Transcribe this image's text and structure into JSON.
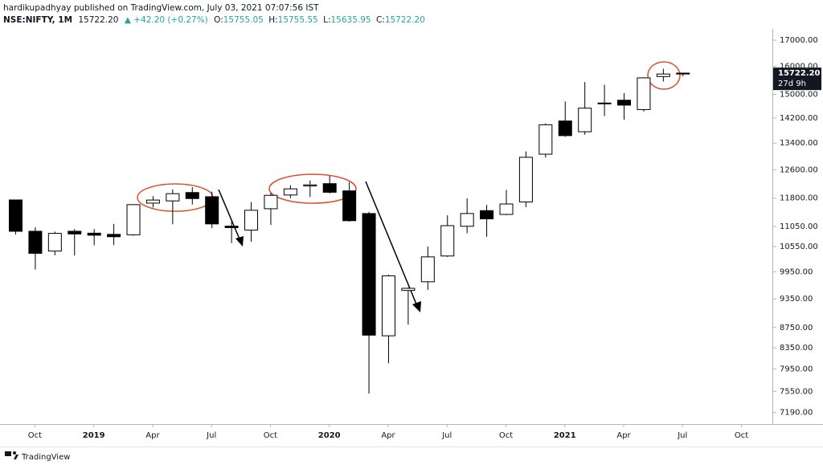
{
  "header": {
    "line1": "hardikupadhyay published on TradingView.com, July 03, 2021 07:07:56 IST",
    "symbol": "NSE:NIFTY, 1M",
    "last": "15722.20",
    "change": "▲ +42.20 (+0.27%)",
    "o_label": "O:",
    "o": "15755.05",
    "h_label": "H:",
    "h": "15755.55",
    "l_label": "L:",
    "l": "15635.95",
    "c_label": "C:",
    "c": "15722.20"
  },
  "chart_data": {
    "type": "candlestick",
    "log_scale": true,
    "grid": false,
    "up_color": "#ffffff",
    "down_color": "#000000",
    "edge_color": "#000000",
    "categories": [
      null,
      "Oct",
      null,
      null,
      "2019",
      null,
      null,
      "Apr",
      null,
      null,
      "Jul",
      null,
      null,
      "Oct",
      null,
      null,
      "2020",
      null,
      null,
      "Apr",
      null,
      null,
      "Jul",
      null,
      null,
      "Oct",
      null,
      null,
      "2021",
      null,
      null,
      "Apr",
      null,
      null,
      "Jul",
      null,
      null,
      "Oct"
    ],
    "open": [
      11751,
      10930,
      10441,
      10930,
      10882,
      10852,
      10842,
      11665,
      11725,
      11954,
      11839,
      11060,
      10960,
      11515,
      11886,
      12137,
      12202,
      12000,
      11387,
      8584,
      9533,
      9726,
      10323,
      11057,
      11464,
      11364,
      11697,
      13062,
      14104,
      13758,
      14702,
      14798,
      14481,
      15630,
      15755.05,
      null,
      null,
      null
    ],
    "high": [
      11751,
      11035,
      10922,
      10985,
      10987,
      11118,
      11631,
      11856,
      12041,
      12103,
      11981,
      11181,
      11694,
      11945,
      12158,
      12293,
      12430,
      12246,
      11433,
      9889,
      9598,
      10553,
      11341,
      11794,
      11618,
      12025,
      13146,
      14024,
      14754,
      15432,
      15337,
      15044,
      15607,
      15916,
      15755.55,
      null,
      null,
      null
    ],
    "low": [
      10850,
      10005,
      10341,
      10334,
      10584,
      10585,
      10818,
      11549,
      11108,
      11625,
      11010,
      10637,
      10670,
      11090,
      11802,
      11832,
      11929,
      11175,
      7511,
      8055,
      8806,
      9544,
      10299,
      10882,
      10790,
      11347,
      11557,
      12962,
      13597,
      13662,
      14264,
      14151,
      14417,
      15450,
      15635.95,
      null,
      null,
      null
    ],
    "close": [
      10930,
      10387,
      10877,
      10863,
      10831,
      10793,
      11624,
      11748,
      11923,
      11789,
      11118,
      11023,
      11474,
      11877,
      12056,
      12168,
      11962,
      11201,
      8597,
      9859,
      9580,
      10302,
      11073,
      11388,
      11248,
      11642,
      12969,
      13982,
      13635,
      14529,
      14691,
      14631,
      15583,
      15722,
      15722.2,
      null,
      null,
      null
    ],
    "ylim": [
      7000,
      17450
    ],
    "yticks": [
      {
        "value": 7190,
        "label": "7190.00"
      },
      {
        "value": 7550,
        "label": "7550.00"
      },
      {
        "value": 7950,
        "label": "7950.00"
      },
      {
        "value": 8350,
        "label": "8350.00"
      },
      {
        "value": 8750,
        "label": "8750.00"
      },
      {
        "value": 9350,
        "label": "9350.00"
      },
      {
        "value": 9950,
        "label": "9950.00"
      },
      {
        "value": 10550,
        "label": "10550.00"
      },
      {
        "value": 11050,
        "label": "11050.00"
      },
      {
        "value": 11800,
        "label": "11800.00"
      },
      {
        "value": 12600,
        "label": "12600.00"
      },
      {
        "value": 13400,
        "label": "13400.00"
      },
      {
        "value": 14200,
        "label": "14200.00"
      },
      {
        "value": 15000,
        "label": "15000.00"
      },
      {
        "value": 16000,
        "label": "16000.00"
      },
      {
        "value": 17000,
        "label": "17000.00"
      }
    ],
    "price_label": {
      "value": 15722.2,
      "label": "15722.20",
      "countdown": "27d 9h"
    }
  },
  "footer": {
    "brand": "TradingView"
  }
}
